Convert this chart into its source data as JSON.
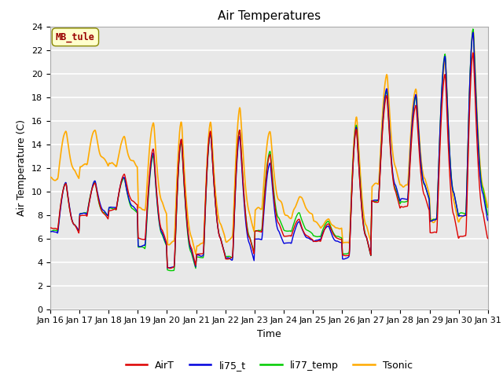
{
  "title": "Air Temperatures",
  "xlabel": "Time",
  "ylabel": "Air Temperature (C)",
  "ylim": [
    0,
    24
  ],
  "yticks": [
    0,
    2,
    4,
    6,
    8,
    10,
    12,
    14,
    16,
    18,
    20,
    22,
    24
  ],
  "xlim": [
    0,
    360
  ],
  "xtick_positions": [
    0,
    24,
    48,
    72,
    96,
    120,
    144,
    168,
    192,
    216,
    240,
    264,
    288,
    312,
    336,
    360
  ],
  "xtick_labels": [
    "Jan 16",
    "Jan 17",
    "Jan 18",
    "Jan 19",
    "Jan 20",
    "Jan 21",
    "Jan 22",
    "Jan 23",
    "Jan 24",
    "Jan 25",
    "Jan 26",
    "Jan 27",
    "Jan 28",
    "Jan 29",
    "Jan 30",
    "Jan 31"
  ],
  "bg_color": "#e8e8e8",
  "grid_color": "#ffffff",
  "series": {
    "AirT": {
      "color": "#dd0000",
      "lw": 1.0
    },
    "li75_t": {
      "color": "#0000dd",
      "lw": 1.0
    },
    "li77_temp": {
      "color": "#00cc00",
      "lw": 1.0
    },
    "Tsonic": {
      "color": "#ffaa00",
      "lw": 1.2
    }
  },
  "annotation_text": "MB_tule",
  "annotation_color": "#990000",
  "annotation_bg": "#ffffcc",
  "annotation_border": "#888800",
  "title_fontsize": 11,
  "axis_fontsize": 9,
  "tick_fontsize": 8
}
